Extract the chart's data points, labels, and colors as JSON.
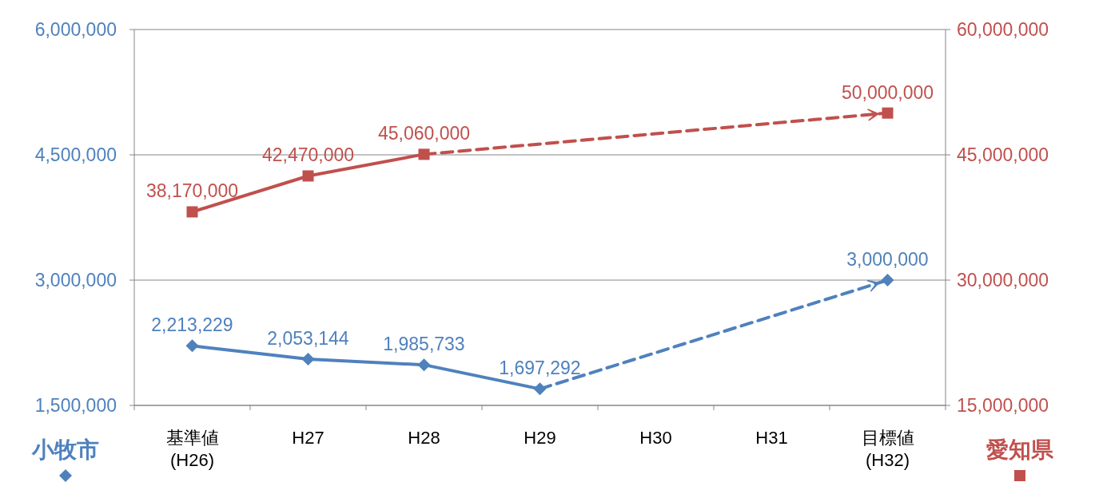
{
  "chart_data": {
    "type": "line",
    "categories": [
      "基準値\n(H26)",
      "H27",
      "H28",
      "H29",
      "H30",
      "H31",
      "目標値\n(H32)"
    ],
    "ylim": [
      1500000,
      6000000
    ],
    "yticks": [
      {
        "value": 1500000,
        "label": "1,500,000"
      },
      {
        "value": 3000000,
        "label": "3,000,000"
      },
      {
        "value": 4500000,
        "label": "4,500,000"
      },
      {
        "value": 6000000,
        "label": "6,000,000"
      }
    ],
    "y2lim": [
      15000000,
      60000000
    ],
    "y2ticks": [
      {
        "value": 15000000,
        "label": "15,000,000"
      },
      {
        "value": 30000000,
        "label": "30,000,000"
      },
      {
        "value": 45000000,
        "label": "45,000,000"
      },
      {
        "value": 60000000,
        "label": "60,000,000"
      }
    ],
    "grid": "y",
    "legend": "bottom",
    "series": [
      {
        "name": "小牧市",
        "color": "#4f81bd",
        "marker": "diamond",
        "line_style": "solid",
        "values": [
          2213229,
          2053144,
          1985733,
          1697292,
          null,
          null,
          null
        ],
        "value_labels": [
          "2,213,229",
          "2,053,144",
          "1,985,733",
          "1,697,292",
          null,
          null,
          null
        ]
      },
      {
        "color": "#4f81bd",
        "marker": "diamond",
        "line_style": "dashed",
        "values": [
          null,
          null,
          null,
          1697292,
          null,
          null,
          3000000
        ],
        "value_labels": [
          null,
          null,
          null,
          null,
          null,
          null,
          "3,000,000"
        ]
      },
      {
        "name": "愛知県",
        "color": "#c0504d",
        "marker": "square",
        "line_style": "solid",
        "axis": "y2",
        "values": [
          38170000,
          42470000,
          45060000,
          null,
          null,
          null,
          null
        ],
        "value_labels": [
          "38,170,000",
          "42,470,000",
          "45,060,000",
          null,
          null,
          null,
          null
        ]
      },
      {
        "color": "#c0504d",
        "marker": "square",
        "line_style": "dashed",
        "axis": "y2",
        "values": [
          null,
          null,
          45060000,
          null,
          null,
          null,
          50000000
        ],
        "value_labels": [
          null,
          null,
          null,
          null,
          null,
          null,
          "50,000,000"
        ]
      }
    ]
  }
}
